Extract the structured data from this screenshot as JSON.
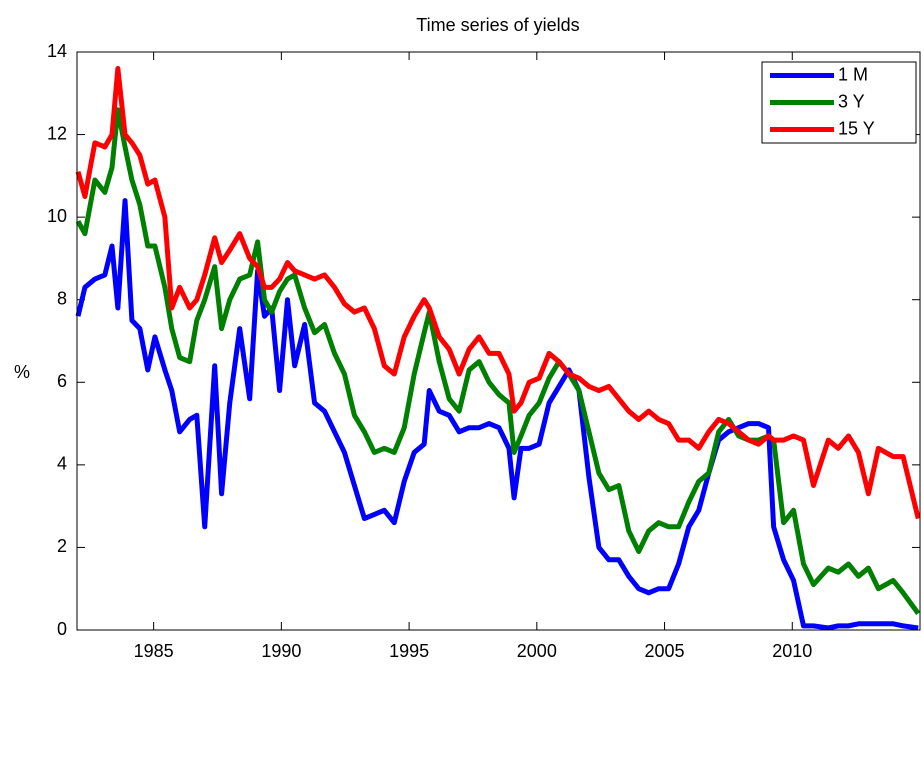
{
  "chart_data": {
    "type": "line",
    "title": "Time series of yields",
    "ylabel": "%",
    "x": [
      1982.04,
      1982.31,
      1982.7,
      1983.09,
      1983.37,
      1983.6,
      1983.88,
      1984.15,
      1984.46,
      1984.77,
      1985.05,
      1985.44,
      1985.71,
      1986.02,
      1986.41,
      1986.69,
      1987.0,
      1987.39,
      1987.66,
      1987.98,
      1988.37,
      1988.76,
      1989.07,
      1989.34,
      1989.62,
      1989.93,
      1990.24,
      1990.52,
      1990.91,
      1991.3,
      1991.69,
      1992.08,
      1992.47,
      1992.86,
      1993.25,
      1993.64,
      1994.03,
      1994.42,
      1994.81,
      1995.2,
      1995.59,
      1995.79,
      1996.18,
      1996.57,
      1996.96,
      1997.35,
      1997.74,
      1998.13,
      1998.52,
      1998.91,
      1999.11,
      1999.38,
      1999.7,
      2000.09,
      2000.48,
      2000.87,
      2001.26,
      2001.65,
      2002.04,
      2002.43,
      2002.82,
      2003.21,
      2003.6,
      2003.99,
      2004.38,
      2004.77,
      2005.16,
      2005.55,
      2005.95,
      2006.34,
      2006.73,
      2007.12,
      2007.51,
      2007.9,
      2008.29,
      2008.68,
      2009.07,
      2009.27,
      2009.66,
      2010.05,
      2010.44,
      2010.83,
      2011.41,
      2011.8,
      2012.2,
      2012.59,
      2012.98,
      2013.37,
      2013.95,
      2014.34,
      2014.93
    ],
    "series": [
      {
        "name": "1 M",
        "color": "#0000ff",
        "values": [
          7.6,
          8.3,
          8.5,
          8.6,
          9.3,
          7.8,
          10.4,
          7.5,
          7.3,
          6.3,
          7.1,
          6.3,
          5.8,
          4.8,
          5.1,
          5.2,
          2.5,
          6.4,
          3.3,
          5.5,
          7.3,
          5.6,
          8.7,
          7.6,
          7.8,
          5.8,
          8.0,
          6.4,
          7.4,
          5.5,
          5.3,
          4.8,
          4.3,
          3.5,
          2.7,
          2.8,
          2.9,
          2.6,
          3.6,
          4.3,
          4.5,
          5.8,
          5.3,
          5.2,
          4.8,
          4.9,
          4.9,
          5.0,
          4.9,
          4.4,
          3.2,
          4.4,
          4.4,
          4.5,
          5.5,
          5.9,
          6.3,
          5.8,
          3.7,
          2.0,
          1.7,
          1.7,
          1.3,
          1.0,
          0.9,
          1.0,
          1.0,
          1.6,
          2.5,
          2.9,
          3.8,
          4.6,
          4.8,
          4.9,
          5.0,
          5.0,
          4.9,
          2.5,
          1.7,
          1.2,
          0.1,
          0.1,
          0.05,
          0.1,
          0.1,
          0.15,
          0.15,
          0.15,
          0.15,
          0.1,
          0.05
        ]
      },
      {
        "name": "3 Y",
        "color": "#008000",
        "values": [
          9.9,
          9.6,
          10.9,
          10.6,
          11.2,
          12.6,
          11.7,
          10.9,
          10.3,
          9.3,
          9.3,
          8.3,
          7.3,
          6.6,
          6.5,
          7.5,
          8.0,
          8.8,
          7.3,
          8.0,
          8.5,
          8.6,
          9.4,
          8.0,
          7.7,
          8.2,
          8.5,
          8.6,
          7.8,
          7.2,
          7.4,
          6.7,
          6.2,
          5.2,
          4.8,
          4.3,
          4.4,
          4.3,
          4.9,
          6.2,
          7.2,
          7.7,
          6.5,
          5.6,
          5.3,
          6.3,
          6.5,
          6.0,
          5.7,
          5.5,
          4.3,
          4.7,
          5.2,
          5.5,
          6.1,
          6.5,
          6.2,
          5.8,
          4.8,
          3.8,
          3.4,
          3.5,
          2.4,
          1.9,
          2.4,
          2.6,
          2.5,
          2.5,
          3.1,
          3.6,
          3.8,
          4.8,
          5.1,
          4.7,
          4.6,
          4.6,
          4.7,
          4.6,
          2.6,
          2.9,
          1.6,
          1.1,
          1.5,
          1.4,
          1.6,
          1.3,
          1.5,
          1.0,
          1.2,
          0.9,
          0.4
        ]
      },
      {
        "name": "15 Y",
        "color": "#ff0000",
        "values": [
          11.1,
          10.5,
          11.8,
          11.7,
          12.0,
          13.6,
          12.0,
          11.8,
          11.5,
          10.8,
          10.9,
          10.0,
          7.8,
          8.3,
          7.8,
          8.0,
          8.6,
          9.5,
          8.9,
          9.2,
          9.6,
          9.0,
          8.8,
          8.3,
          8.3,
          8.5,
          8.9,
          8.7,
          8.6,
          8.5,
          8.6,
          8.3,
          7.9,
          7.7,
          7.8,
          7.3,
          6.4,
          6.2,
          7.1,
          7.6,
          8.0,
          7.8,
          7.1,
          6.8,
          6.2,
          6.8,
          7.1,
          6.7,
          6.7,
          6.2,
          5.3,
          5.5,
          6.0,
          6.1,
          6.7,
          6.5,
          6.2,
          6.1,
          5.9,
          5.8,
          5.9,
          5.6,
          5.3,
          5.1,
          5.3,
          5.1,
          5.0,
          4.6,
          4.6,
          4.4,
          4.8,
          5.1,
          5.0,
          4.8,
          4.6,
          4.5,
          4.7,
          4.6,
          4.6,
          4.7,
          4.6,
          3.5,
          4.6,
          4.4,
          4.7,
          4.3,
          3.3,
          4.4,
          4.2,
          4.2,
          2.7
        ]
      }
    ],
    "xlim": [
      1982,
      2015
    ],
    "xticks": [
      1985,
      1990,
      1995,
      2000,
      2005,
      2010
    ],
    "ylim": [
      0,
      14
    ],
    "yticks": [
      0,
      2,
      4,
      6,
      8,
      10,
      12,
      14
    ],
    "legend": "upper right"
  }
}
